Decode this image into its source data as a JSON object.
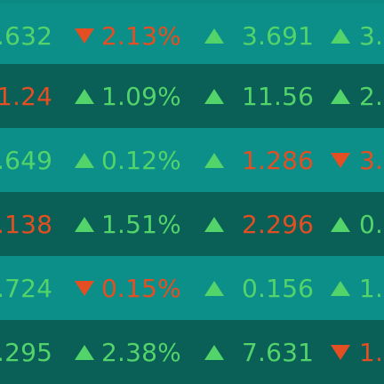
{
  "rows": [
    {
      "price1": ".632",
      "price1_trend": "up",
      "change_trend": "down",
      "change": "2.13%",
      "price2_trend": "up",
      "price2": "3.691",
      "price3_trend": "up",
      "price3": "3."
    },
    {
      "price1": "1.24",
      "price1_trend": "down",
      "change_trend": "up",
      "change": "1.09%",
      "price2_trend": "up",
      "price2": "11.56",
      "price3_trend": "up",
      "price3": "2."
    },
    {
      "price1": ".649",
      "price1_trend": "up",
      "change_trend": "up",
      "change": "0.12%",
      "price2_trend": "up",
      "price2": "1.286",
      "price2_color": "down",
      "price3_trend": "down",
      "price3": "3."
    },
    {
      "price1": ".138",
      "price1_trend": "down",
      "change_trend": "up",
      "change": "1.51%",
      "price2_trend": "up",
      "price2": "2.296",
      "price2_color": "down",
      "price3_trend": "up",
      "price3": "0."
    },
    {
      "price1": ".724",
      "price1_trend": "up",
      "change_trend": "down",
      "change": "0.15%",
      "price2_trend": "up",
      "price2": "0.156",
      "price3_trend": "up",
      "price3": "1."
    },
    {
      "price1": ".295",
      "price1_trend": "up",
      "change_trend": "up",
      "change": "2.38%",
      "price2_trend": "up",
      "price2": "7.631",
      "price3_trend": "down",
      "price3": "1."
    }
  ]
}
